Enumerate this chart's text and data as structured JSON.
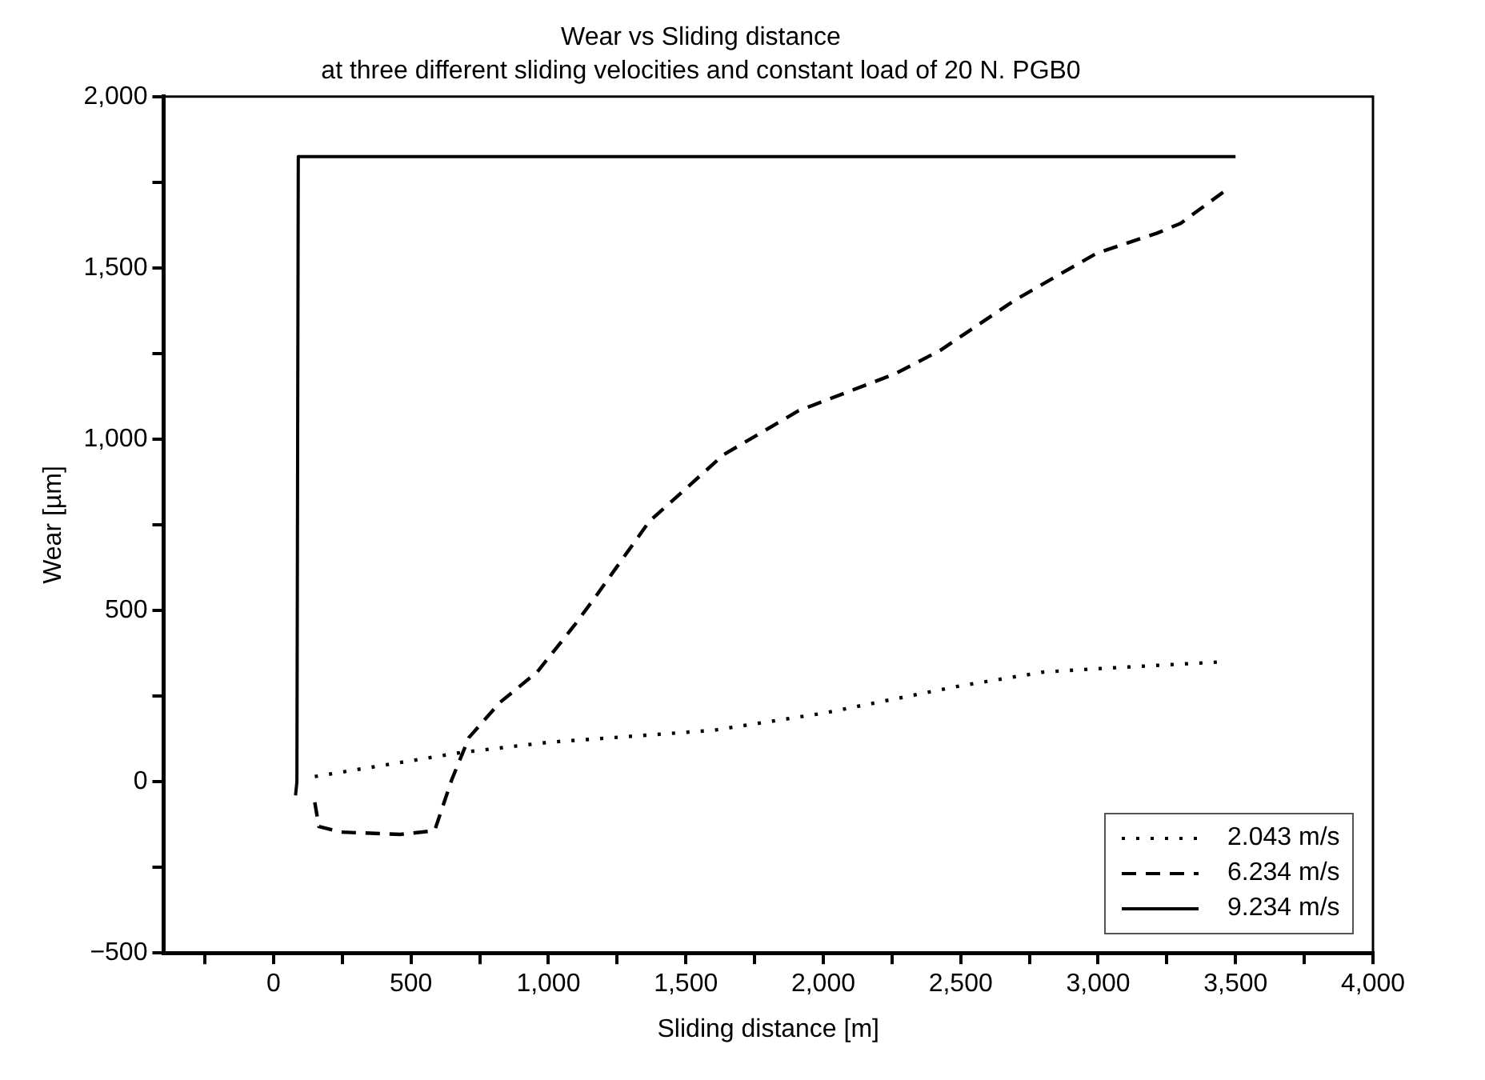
{
  "chart_data": {
    "type": "line",
    "title": "Wear vs Sliding distance",
    "subtitle": "at three different sliding velocities and constant load of 20 N. PGB0",
    "xlabel": "Sliding distance [m]",
    "ylabel": "Wear [µm]",
    "xlim": [
      -400,
      4000
    ],
    "ylim": [
      -500,
      2000
    ],
    "xticks": [
      {
        "value": -250,
        "label": null
      },
      0,
      {
        "value": 250,
        "label": null
      },
      500,
      {
        "value": 750,
        "label": null
      },
      {
        "value": 1000,
        "label": "1,000"
      },
      {
        "value": 1250,
        "label": null
      },
      {
        "value": 1500,
        "label": "1,500"
      },
      {
        "value": 1750,
        "label": null
      },
      {
        "value": 2000,
        "label": "2,000"
      },
      {
        "value": 2250,
        "label": null
      },
      {
        "value": 2500,
        "label": "2,500"
      },
      {
        "value": 2750,
        "label": null
      },
      {
        "value": 3000,
        "label": "3,000"
      },
      {
        "value": 3250,
        "label": null
      },
      {
        "value": 3500,
        "label": "3,500"
      },
      {
        "value": 3750,
        "label": null
      },
      {
        "value": 4000,
        "label": "4,000"
      }
    ],
    "yticks": [
      {
        "value": -500,
        "label": "−500"
      },
      {
        "value": -250,
        "label": null
      },
      0,
      {
        "value": 250,
        "label": null
      },
      500,
      {
        "value": 750,
        "label": null
      },
      {
        "value": 1000,
        "label": "1,000"
      },
      {
        "value": 1250,
        "label": null
      },
      {
        "value": 1500,
        "label": "1,500"
      },
      {
        "value": 1750,
        "label": null
      },
      {
        "value": 2000,
        "label": "2,000"
      }
    ],
    "grid": false,
    "legend": "bottom right",
    "marker": "none",
    "series": [
      {
        "name": "2.043 m/s",
        "color": "#000000",
        "line_style": "dotted",
        "x": [
          150,
          680,
          1000,
          1600,
          2000,
          2500,
          2800,
          3000,
          3450
        ],
        "values": [
          15,
          85,
          115,
          150,
          200,
          280,
          320,
          330,
          350
        ]
      },
      {
        "name": "6.234 m/s",
        "color": "#000000",
        "line_style": "dashed",
        "x": [
          150,
          165,
          243,
          461,
          586,
          648,
          711,
          823,
          960,
          1095,
          1176,
          1367,
          1638,
          1910,
          2262,
          2425,
          2697,
          2995,
          3213,
          3300,
          3470
        ],
        "values": [
          -60,
          -131,
          -147,
          -154,
          -143,
          5,
          129,
          231,
          321,
          457,
          545,
          760,
          955,
          1083,
          1191,
          1259,
          1406,
          1543,
          1601,
          1630,
          1730
        ]
      },
      {
        "name": "9.234 m/s",
        "color": "#000000",
        "line_style": "solid",
        "x": [
          80,
          85,
          90,
          3500
        ],
        "values": [
          -40,
          0,
          1825,
          1825
        ]
      }
    ]
  }
}
